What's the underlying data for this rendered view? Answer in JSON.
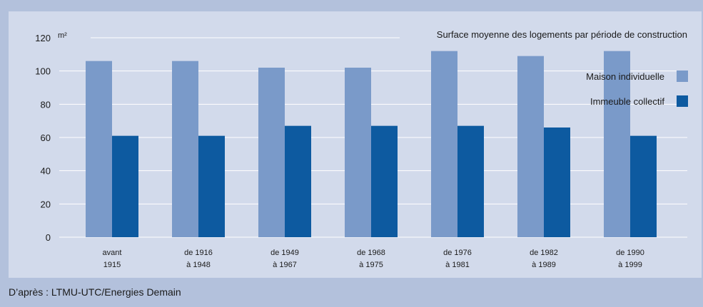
{
  "source": "D’après : LTMU-UTC/Energies Demain",
  "chart_data": {
    "type": "bar",
    "title": "Surface moyenne des logements par période de construction",
    "unit": "m²",
    "categories": [
      [
        "avant",
        "1915"
      ],
      [
        "de 1916",
        "à 1948"
      ],
      [
        "de 1949",
        "à 1967"
      ],
      [
        "de 1968",
        "à 1975"
      ],
      [
        "de 1976",
        "à 1981"
      ],
      [
        "de 1982",
        "à 1989"
      ],
      [
        "de 1990",
        "à 1999"
      ]
    ],
    "series": [
      {
        "name": "Maison individuelle",
        "color": "#7a9ac9",
        "values": [
          106,
          106,
          102,
          102,
          112,
          109,
          112
        ]
      },
      {
        "name": "Immeuble collectif",
        "color": "#0d5aa0",
        "values": [
          61,
          61,
          67,
          67,
          67,
          66,
          61
        ]
      }
    ],
    "yticks": [
      0,
      20,
      40,
      60,
      80,
      100,
      120
    ],
    "ylim": [
      0,
      120
    ],
    "grid": true,
    "legend": "right"
  }
}
